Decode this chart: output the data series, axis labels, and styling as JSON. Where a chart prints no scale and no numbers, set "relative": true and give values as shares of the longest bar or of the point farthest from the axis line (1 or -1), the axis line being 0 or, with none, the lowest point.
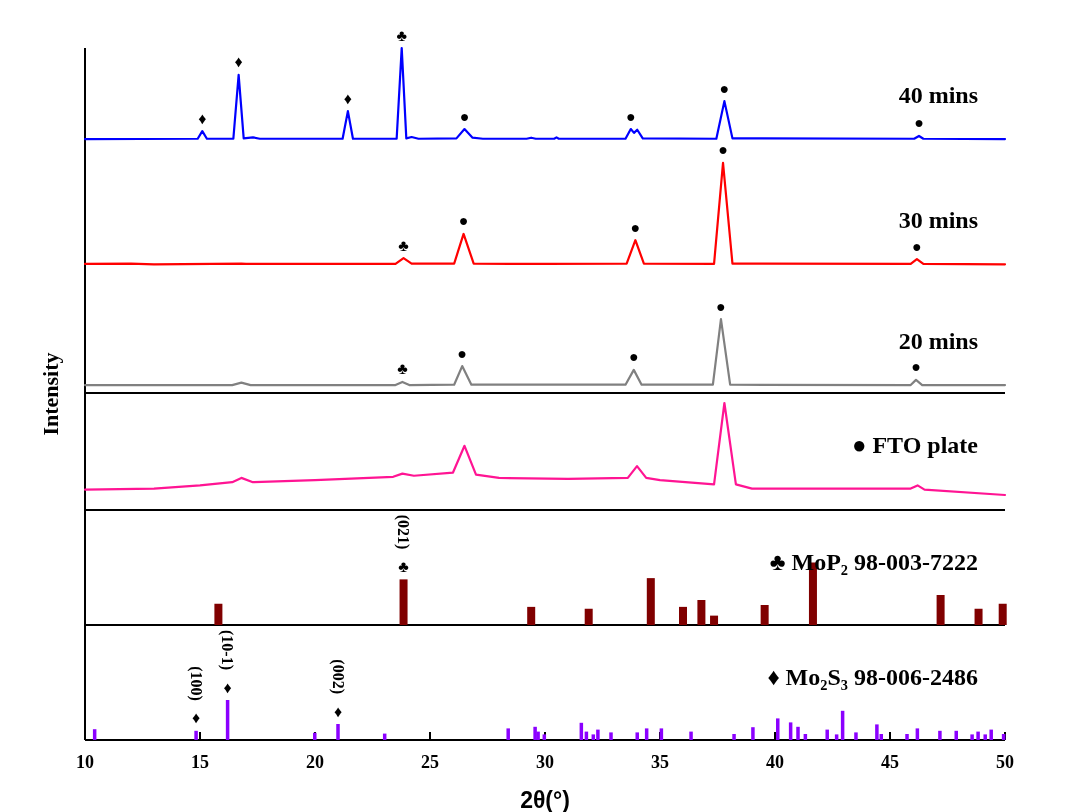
{
  "chart_data": [
    {
      "type": "line",
      "relative": true,
      "ylabel": "Intensity",
      "xlim": [
        10,
        50
      ],
      "tick_labels": false,
      "series": [
        {
          "name": "40 mins",
          "color": "#0000ff",
          "x": [
            10,
            14.9,
            15.1,
            15.3,
            16.45,
            16.68,
            16.9,
            17.3,
            17.6,
            21.2,
            21.43,
            21.65,
            23.55,
            23.77,
            23.97,
            24.2,
            24.5,
            26.15,
            26.5,
            26.85,
            27.3,
            29.2,
            29.4,
            29.6,
            30.4,
            30.5,
            30.6,
            33.5,
            33.73,
            33.87,
            34.01,
            34.25,
            37.45,
            37.8,
            38.15,
            46.05,
            46.26,
            46.45,
            50
          ],
          "values": [
            0.736,
            0.737,
            0.759,
            0.737,
            0.737,
            0.922,
            0.738,
            0.741,
            0.737,
            0.737,
            0.817,
            0.737,
            0.737,
            1,
            0.738,
            0.742,
            0.737,
            0.738,
            0.765,
            0.74,
            0.737,
            0.737,
            0.74,
            0.737,
            0.737,
            0.741,
            0.737,
            0.737,
            0.765,
            0.754,
            0.763,
            0.738,
            0.737,
            0.846,
            0.738,
            0.737,
            0.745,
            0.737,
            0.736
          ]
        },
        {
          "name": "30 mins",
          "color": "#ff0000",
          "x": [
            10,
            12,
            13,
            16.8,
            17,
            23.5,
            23.85,
            24.2,
            26.05,
            26.46,
            26.9,
            30,
            33.55,
            33.93,
            34.3,
            37.35,
            37.74,
            38.15,
            45.9,
            46.17,
            46.45,
            50
          ],
          "values": [
            0.374,
            0.375,
            0.373,
            0.375,
            0.374,
            0.374,
            0.391,
            0.375,
            0.375,
            0.461,
            0.375,
            0.374,
            0.375,
            0.443,
            0.375,
            0.374,
            0.667,
            0.375,
            0.374,
            0.388,
            0.374,
            0.373
          ]
        },
        {
          "name": "20 mins",
          "color": "#808080",
          "x": [
            10,
            16.4,
            16.8,
            17.2,
            23.5,
            23.8,
            24.1,
            26.05,
            26.4,
            26.8,
            33.5,
            33.86,
            34.2,
            37.3,
            37.65,
            38.05,
            45.9,
            46.13,
            46.4,
            50
          ],
          "values": [
            0.023,
            0.023,
            0.03,
            0.023,
            0.023,
            0.032,
            0.023,
            0.024,
            0.078,
            0.024,
            0.024,
            0.067,
            0.024,
            0.024,
            0.214,
            0.024,
            0.023,
            0.038,
            0.023,
            0.023
          ]
        }
      ],
      "annotations": [
        {
          "text": "♦",
          "x": 15.1,
          "y": 0.759
        },
        {
          "text": "♦",
          "x": 16.68,
          "y": 0.922
        },
        {
          "text": "♦",
          "x": 21.43,
          "y": 0.817
        },
        {
          "text": "♣",
          "x": 23.77,
          "y": 1
        },
        {
          "text": "●",
          "x": 26.5,
          "y": 0.765
        },
        {
          "text": "●",
          "x": 33.73,
          "y": 0.765
        },
        {
          "text": "●",
          "x": 37.8,
          "y": 0.846
        },
        {
          "text": "●",
          "x": 46.26,
          "y": 0.745
        },
        {
          "text": "♣",
          "x": 23.85,
          "y": 0.391
        },
        {
          "text": "●",
          "x": 26.46,
          "y": 0.461
        },
        {
          "text": "●",
          "x": 33.93,
          "y": 0.443
        },
        {
          "text": "●",
          "x": 37.74,
          "y": 0.667
        },
        {
          "text": "●",
          "x": 46.17,
          "y": 0.388
        },
        {
          "text": "♣",
          "x": 23.8,
          "y": 0.032
        },
        {
          "text": "●",
          "x": 26.4,
          "y": 0.078
        },
        {
          "text": "●",
          "x": 33.86,
          "y": 0.067
        },
        {
          "text": "●",
          "x": 37.65,
          "y": 0.214
        },
        {
          "text": "●",
          "x": 46.13,
          "y": 0.038
        }
      ]
    },
    {
      "type": "line",
      "relative": true,
      "xlim": [
        10,
        50
      ],
      "tick_labels": false,
      "series": [
        {
          "name": "● FTO plate",
          "color": "#ff1493",
          "x": [
            10,
            13,
            15,
            16.4,
            16.8,
            17.3,
            20,
            23.4,
            23.8,
            24.3,
            26.0,
            26.5,
            27.0,
            28,
            31,
            33.6,
            34.0,
            34.4,
            35,
            37.35,
            37.8,
            38.3,
            39,
            43,
            45.9,
            46.2,
            46.5,
            50
          ],
          "values": [
            0.19,
            0.2,
            0.23,
            0.26,
            0.3,
            0.26,
            0.28,
            0.31,
            0.34,
            0.32,
            0.35,
            0.6,
            0.33,
            0.3,
            0.29,
            0.3,
            0.41,
            0.3,
            0.28,
            0.24,
            1,
            0.24,
            0.2,
            0.2,
            0.2,
            0.23,
            0.19,
            0.14
          ]
        }
      ]
    },
    {
      "type": "bar",
      "relative": true,
      "xlim": [
        10,
        50
      ],
      "tick_labels": false,
      "x": [
        15.8,
        23.85,
        29.4,
        31.9,
        34.6,
        36.0,
        36.8,
        37.35,
        39.55,
        41.65,
        47.2,
        48.85,
        49.9
      ],
      "series": [
        {
          "name": "♣ MoP₂ 98-003-7222",
          "color": "#800000",
          "values": [
            0.34,
            0.73,
            0.29,
            0.26,
            0.75,
            0.29,
            0.4,
            0.15,
            0.32,
            1,
            0.48,
            0.26,
            0.34
          ]
        }
      ],
      "annotations": [
        {
          "text": "♣",
          "x": 23.85,
          "y": 0.73
        },
        {
          "text": "(021)",
          "x": 23.85,
          "y": 0.73
        }
      ]
    },
    {
      "type": "bar",
      "relative": true,
      "xlim": [
        10,
        50
      ],
      "tick_labels": "x",
      "xticks": [
        10,
        15,
        20,
        25,
        30,
        35,
        40,
        45,
        50
      ],
      "xlabel": "2θ(°)",
      "x": [
        10.42,
        14.83,
        16.2,
        19.99,
        21.0,
        23.03,
        28.4,
        29.57,
        29.7,
        29.97,
        31.58,
        31.8,
        32.1,
        32.3,
        32.87,
        34.01,
        34.42,
        35.06,
        36.35,
        38.22,
        39.04,
        40.12,
        40.68,
        41.0,
        41.32,
        42.27,
        42.68,
        42.94,
        43.52,
        44.43,
        44.62,
        45.74,
        46.19,
        47.17,
        47.88,
        48.57,
        48.83,
        49.14,
        49.4,
        49.94
      ],
      "series": [
        {
          "name": "♦ Mo₂S₃ 98-006-2486",
          "color": "#8b00ff",
          "values": [
            0.27,
            0.23,
            1,
            0.18,
            0.4,
            0.16,
            0.29,
            0.33,
            0.21,
            0.14,
            0.43,
            0.21,
            0.14,
            0.26,
            0.19,
            0.19,
            0.29,
            0.29,
            0.21,
            0.15,
            0.32,
            0.54,
            0.44,
            0.33,
            0.15,
            0.26,
            0.14,
            0.73,
            0.19,
            0.39,
            0.15,
            0.15,
            0.29,
            0.23,
            0.23,
            0.14,
            0.21,
            0.14,
            0.26,
            0.15
          ]
        }
      ],
      "annotations": [
        {
          "text": "♦",
          "x": 14.83,
          "y": 0.23
        },
        {
          "text": "(100)",
          "x": 14.83,
          "y": 0.23
        },
        {
          "text": "♦",
          "x": 16.2,
          "y": 1
        },
        {
          "text": "(10-1)",
          "x": 16.2,
          "y": 1
        },
        {
          "text": "♦",
          "x": 21.0,
          "y": 0.4
        },
        {
          "text": "(002)",
          "x": 21.0,
          "y": 0.4
        }
      ]
    }
  ]
}
